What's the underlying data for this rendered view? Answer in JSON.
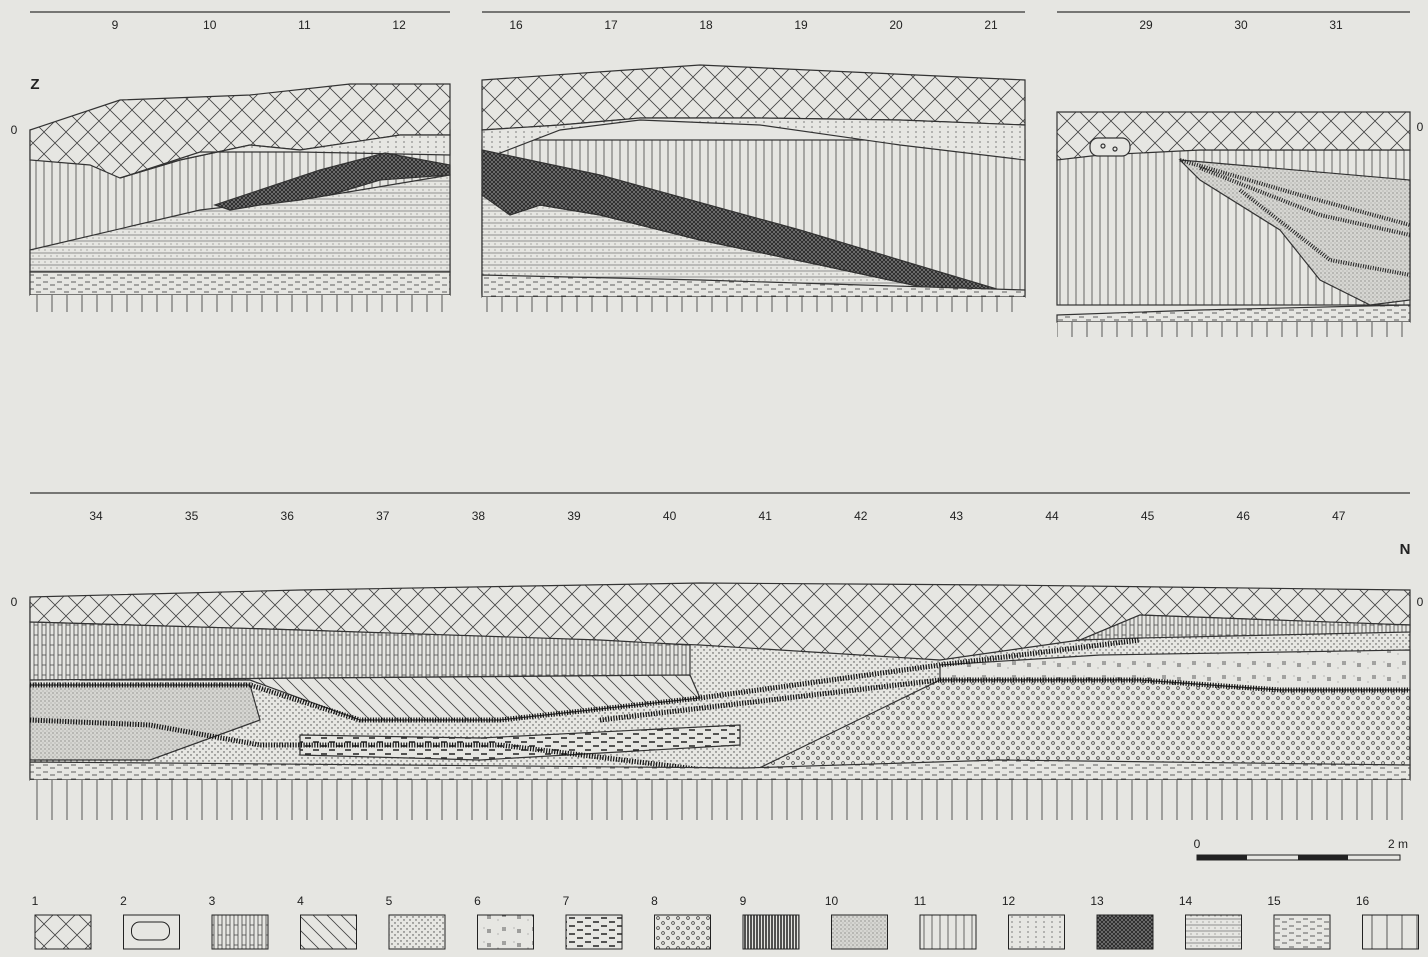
{
  "sections": [
    {
      "ticks": [
        "9",
        "10",
        "11",
        "12"
      ],
      "orientation": "Z",
      "datum_left": "0"
    },
    {
      "ticks": [
        "16",
        "17",
        "18",
        "19",
        "20",
        "21"
      ]
    },
    {
      "ticks": [
        "29",
        "30",
        "31"
      ],
      "datum_right": "0"
    },
    {
      "ticks": [
        "34",
        "35",
        "36",
        "37",
        "38",
        "39",
        "40",
        "41",
        "42",
        "43",
        "44",
        "45",
        "46",
        "47"
      ],
      "orientation": "N",
      "datum_left": "0",
      "datum_right": "0"
    }
  ],
  "scale": {
    "start": "0",
    "end": "2 m"
  },
  "legend": [
    "1",
    "2",
    "3",
    "4",
    "5",
    "6",
    "7",
    "8",
    "9",
    "10",
    "11",
    "12",
    "13",
    "14",
    "15",
    "16"
  ]
}
